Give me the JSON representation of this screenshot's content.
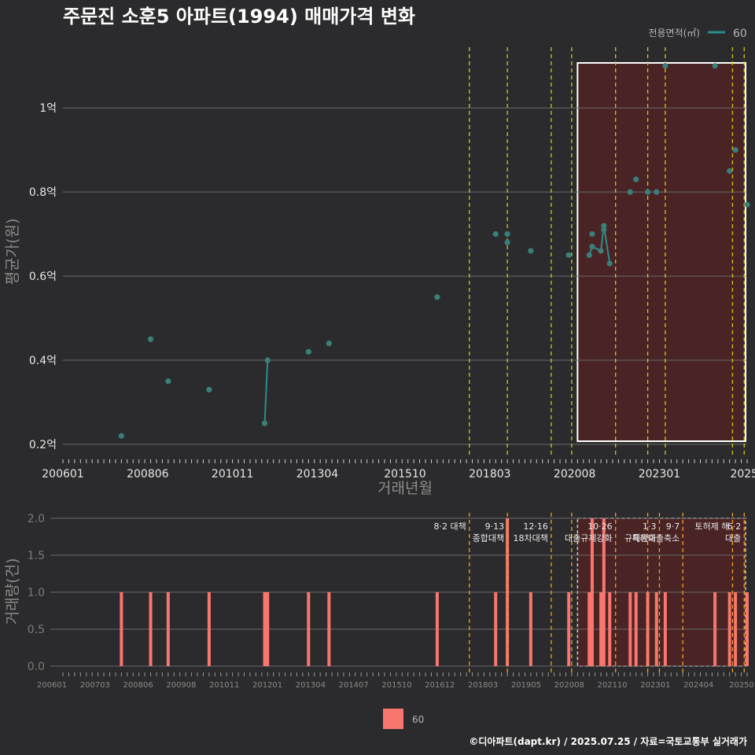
{
  "title": "주문진 소훈5 아파트(1994) 매매가격 변화",
  "footer": "©디아파트(dapt.kr) / 2025.07.25 / 자료=국토교통부 실거래가",
  "colors": {
    "background": "#2b2b2d",
    "series_line": "#2a8f8a",
    "points": "#3b7f7a",
    "bars": "#f8766d",
    "policy_line_top": "#d4c41a",
    "policy_line_bottom": "#f0a020",
    "highlight_fill": "#4a2325",
    "grid": "#6a6a6a"
  },
  "chart_data": [
    {
      "type": "scatter",
      "title": "주문진 소훈5 아파트(1994) 매매가격 변화",
      "xlabel": "거래년월",
      "ylabel": "평균가(원)",
      "x_type": "date",
      "xlim": [
        "2006-01",
        "2025-07"
      ],
      "ylim": [
        0.17,
        1.15
      ],
      "y_unit": "억",
      "y_ticks": [
        0.2,
        0.4,
        0.6,
        0.8,
        1.0
      ],
      "y_tick_labels": [
        "0.2억",
        "0.4억",
        "0.6억",
        "0.8억",
        "1억"
      ],
      "x_ticks": [
        "2006-01",
        "2008-06",
        "2010-11",
        "2013-04",
        "2015-10",
        "2018-03",
        "2020-08",
        "2023-01",
        "2025-06"
      ],
      "x_tick_labels": [
        "200601",
        "200806",
        "201011",
        "201304",
        "201510",
        "201803",
        "202008",
        "202301",
        "2025"
      ],
      "legend": {
        "title": "전용면적(㎡)",
        "entries": [
          "60"
        ],
        "placement": "top-right"
      },
      "grid": true,
      "series": [
        {
          "name": "60",
          "points": [
            {
              "x": "2007-09",
              "y": 0.22
            },
            {
              "x": "2008-07",
              "y": 0.45
            },
            {
              "x": "2009-01",
              "y": 0.35
            },
            {
              "x": "2010-03",
              "y": 0.33
            },
            {
              "x": "2011-10",
              "y": 0.25
            },
            {
              "x": "2011-11",
              "y": 0.4
            },
            {
              "x": "2013-01",
              "y": 0.42
            },
            {
              "x": "2013-08",
              "y": 0.44
            },
            {
              "x": "2016-09",
              "y": 0.55
            },
            {
              "x": "2018-05",
              "y": 0.7
            },
            {
              "x": "2018-09",
              "y": 0.7
            },
            {
              "x": "2018-09",
              "y": 0.68
            },
            {
              "x": "2019-05",
              "y": 0.66
            },
            {
              "x": "2020-06",
              "y": 0.65
            },
            {
              "x": "2021-01",
              "y": 0.65
            },
            {
              "x": "2021-02",
              "y": 0.67
            },
            {
              "x": "2021-02",
              "y": 0.7
            },
            {
              "x": "2021-05",
              "y": 0.66
            },
            {
              "x": "2021-06",
              "y": 0.71
            },
            {
              "x": "2021-06",
              "y": 0.72
            },
            {
              "x": "2021-08",
              "y": 0.63
            },
            {
              "x": "2022-03",
              "y": 0.8
            },
            {
              "x": "2022-05",
              "y": 0.83
            },
            {
              "x": "2022-09",
              "y": 0.8
            },
            {
              "x": "2022-12",
              "y": 0.8
            },
            {
              "x": "2023-03",
              "y": 1.1
            },
            {
              "x": "2024-08",
              "y": 1.1
            },
            {
              "x": "2025-01",
              "y": 0.85
            },
            {
              "x": "2025-03",
              "y": 0.9
            },
            {
              "x": "2025-07",
              "y": 0.77
            }
          ],
          "line_segments": [
            [
              {
                "x": "2011-10",
                "y": 0.25
              },
              {
                "x": "2011-11",
                "y": 0.4
              }
            ],
            [
              {
                "x": "2021-01",
                "y": 0.65
              },
              {
                "x": "2021-02",
                "y": 0.67
              },
              {
                "x": "2021-05",
                "y": 0.66
              },
              {
                "x": "2021-06",
                "y": 0.72
              },
              {
                "x": "2021-08",
                "y": 0.63
              }
            ]
          ]
        }
      ],
      "policy_lines": [
        "2017-08",
        "2018-09",
        "2019-12",
        "2020-07",
        "2021-10",
        "2022-09",
        "2023-03",
        "2025-02",
        "2025-06"
      ],
      "highlight_range": [
        "2020-09",
        "2025-07"
      ]
    },
    {
      "type": "bar",
      "xlabel": "",
      "ylabel": "거래량(건)",
      "x_type": "date",
      "xlim": [
        "2006-01",
        "2025-07"
      ],
      "ylim": [
        0,
        2.0
      ],
      "y_ticks": [
        0.0,
        0.5,
        1.0,
        1.5,
        2.0
      ],
      "y_tick_labels": [
        "0.0",
        "0.5",
        "1.0",
        "1.5",
        "2.0"
      ],
      "x_tick_labels": [
        "200601",
        "200703",
        "200806",
        "200908",
        "201011",
        "201201",
        "201304",
        "201407",
        "201510",
        "201612",
        "201803",
        "201905",
        "202008",
        "202110",
        "202301",
        "202404",
        "20250"
      ],
      "legend": {
        "entries": [
          "60"
        ],
        "placement": "bottom"
      },
      "series": [
        {
          "name": "60",
          "bars": [
            {
              "x": "2007-09",
              "y": 1
            },
            {
              "x": "2008-07",
              "y": 1
            },
            {
              "x": "2009-01",
              "y": 1
            },
            {
              "x": "2010-03",
              "y": 1
            },
            {
              "x": "2011-10",
              "y": 1
            },
            {
              "x": "2011-11",
              "y": 1
            },
            {
              "x": "2013-01",
              "y": 1
            },
            {
              "x": "2013-08",
              "y": 1
            },
            {
              "x": "2016-09",
              "y": 1
            },
            {
              "x": "2018-05",
              "y": 1
            },
            {
              "x": "2018-09",
              "y": 2
            },
            {
              "x": "2019-05",
              "y": 1
            },
            {
              "x": "2020-06",
              "y": 1
            },
            {
              "x": "2021-01",
              "y": 1
            },
            {
              "x": "2021-02",
              "y": 2
            },
            {
              "x": "2021-05",
              "y": 1
            },
            {
              "x": "2021-06",
              "y": 2
            },
            {
              "x": "2021-08",
              "y": 1
            },
            {
              "x": "2022-03",
              "y": 1
            },
            {
              "x": "2022-05",
              "y": 1
            },
            {
              "x": "2022-09",
              "y": 1
            },
            {
              "x": "2022-12",
              "y": 1
            },
            {
              "x": "2023-03",
              "y": 1
            },
            {
              "x": "2024-08",
              "y": 1
            },
            {
              "x": "2025-01",
              "y": 1
            },
            {
              "x": "2025-03",
              "y": 1
            },
            {
              "x": "2025-07",
              "y": 1
            }
          ]
        }
      ],
      "policy_annotations": [
        {
          "x": "2017-08",
          "lines": [
            "8·2 대책"
          ]
        },
        {
          "x": "2018-09",
          "lines": [
            "9·13",
            "종합대책"
          ]
        },
        {
          "x": "2019-12",
          "lines": [
            "12·16",
            "18차대책"
          ]
        },
        {
          "x": "2020-07",
          "lines": []
        },
        {
          "x": "2021-10",
          "lines": [
            "10·26",
            "대출규제강화"
          ]
        },
        {
          "x": "2022-09",
          "lines": []
        },
        {
          "x": "2023-01",
          "lines": [
            "1·3",
            "규제완화"
          ]
        },
        {
          "x": "2023-09",
          "lines": [
            "9·7",
            "특례대출축소"
          ]
        },
        {
          "x": "2025-02",
          "lines": [
            "토허제 해"
          ]
        },
        {
          "x": "2025-06",
          "lines": [
            "6·2",
            "대출"
          ]
        }
      ],
      "highlight_range": [
        "2020-09",
        "2025-07"
      ]
    }
  ]
}
